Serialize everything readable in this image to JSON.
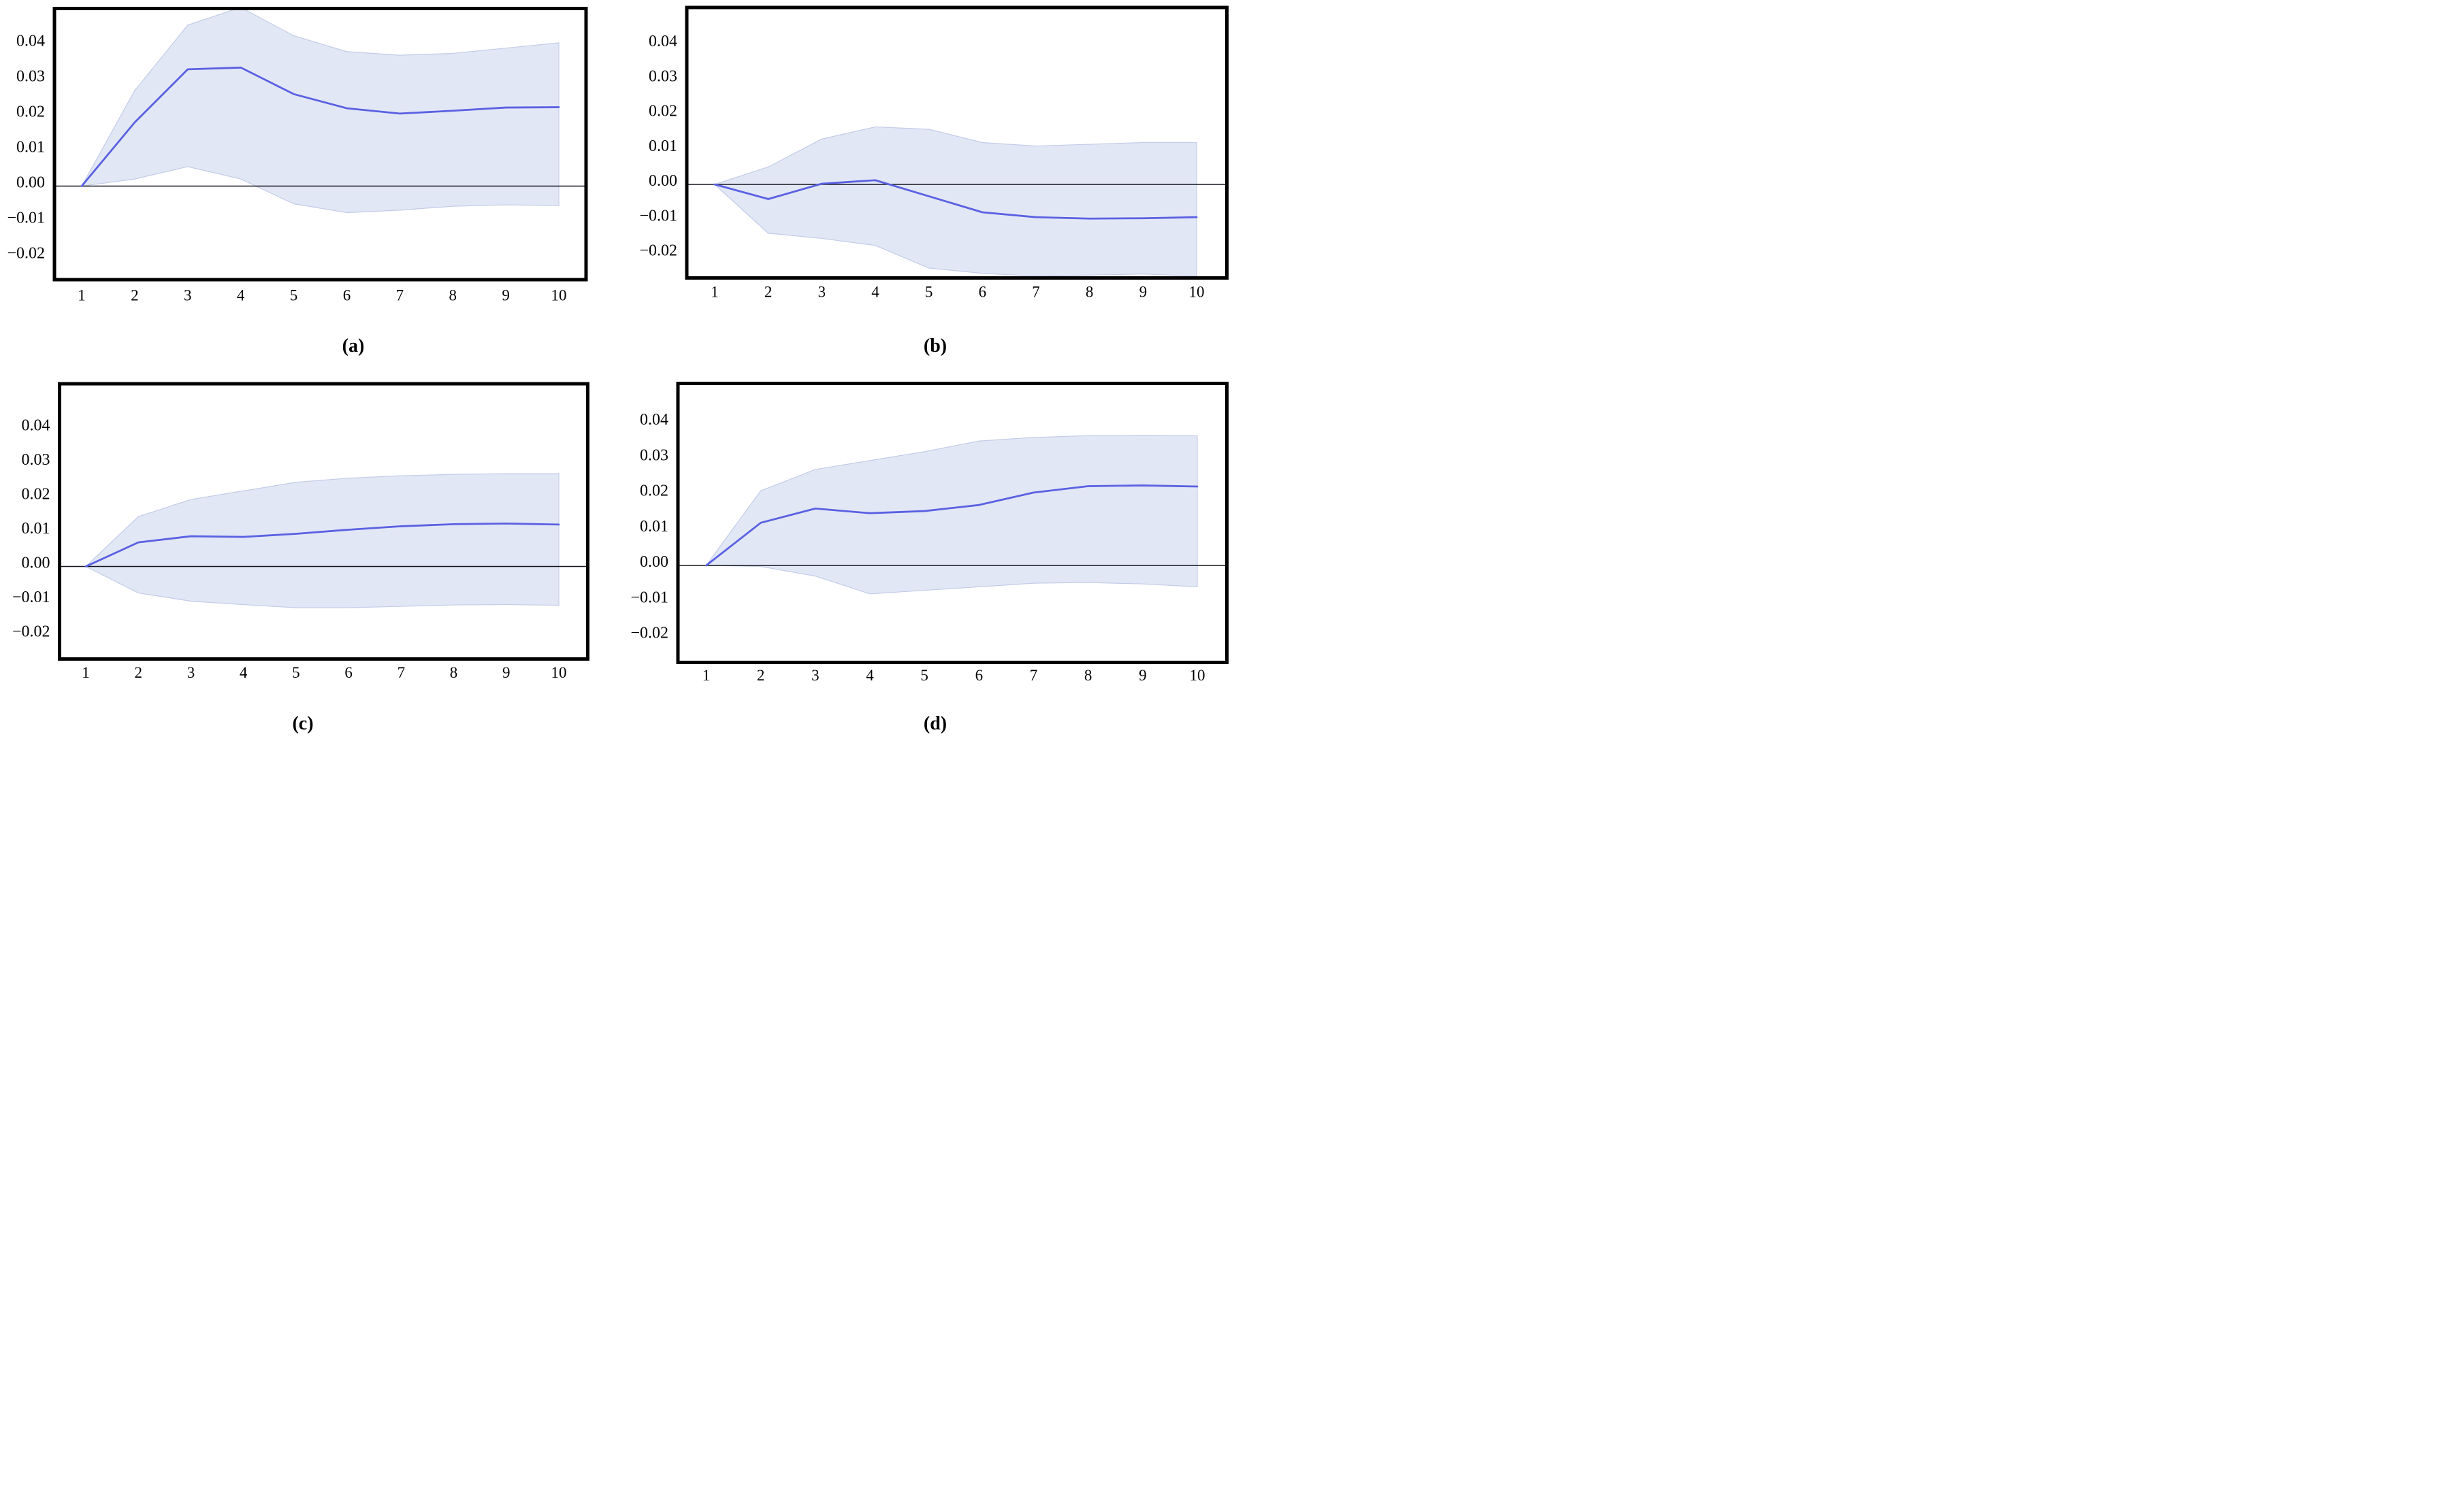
{
  "figure": {
    "description": "Four-panel impulse response figure with 95% confidence bands",
    "panel_labels": [
      "(a)",
      "(b)",
      "(c)",
      "(d)"
    ],
    "background": "#ffffff"
  },
  "colors": {
    "line": "#5a61e2",
    "band_fill": "#e2e7f5",
    "band_edge": "#c3cce7",
    "zero_line": "#15151f",
    "frame": "#000000",
    "text": "#000000"
  },
  "chart_data": [
    {
      "type": "line",
      "panel": "a",
      "caption": "(a)",
      "x": [
        1,
        2,
        3,
        4,
        5,
        6,
        7,
        8,
        9,
        10
      ],
      "x_tick_labels": [
        "1",
        "2",
        "3",
        "4",
        "5",
        "6",
        "7",
        "8",
        "9",
        "10"
      ],
      "y_ticks": [
        0.04,
        0.03,
        0.02,
        0.01,
        0.0,
        -0.01,
        -0.02
      ],
      "y_tick_labels": [
        "0.04",
        "0.03",
        "0.02",
        "0.01",
        "0.00",
        "−0.01",
        "−0.02"
      ],
      "ylim": [
        -0.027,
        0.05
      ],
      "grid": false,
      "legend": false,
      "zero_line": true,
      "series": [
        {
          "name": "impulse-response-mean",
          "values": [
            0.0,
            0.018,
            0.033,
            0.0335,
            0.026,
            0.022,
            0.0205,
            0.0213,
            0.0222,
            0.0223
          ]
        },
        {
          "name": "confidence-band-upper",
          "values": [
            0.0,
            0.027,
            0.0455,
            0.0505,
            0.0425,
            0.038,
            0.037,
            0.0375,
            0.039,
            0.0405
          ]
        },
        {
          "name": "confidence-band-lower",
          "values": [
            0.0,
            0.002,
            0.0055,
            0.002,
            -0.005,
            -0.0075,
            -0.0068,
            -0.0057,
            -0.0053,
            -0.0055
          ]
        }
      ]
    },
    {
      "type": "line",
      "panel": "b",
      "caption": "(b)",
      "x": [
        1,
        2,
        3,
        4,
        5,
        6,
        7,
        8,
        9,
        10
      ],
      "x_tick_labels": [
        "1",
        "2",
        "3",
        "4",
        "5",
        "6",
        "7",
        "8",
        "9",
        "10"
      ],
      "y_ticks": [
        0.04,
        0.03,
        0.02,
        0.01,
        0.0,
        -0.01,
        -0.02
      ],
      "y_tick_labels": [
        "0.04",
        "0.03",
        "0.02",
        "0.01",
        "0.00",
        "−0.01",
        "−0.02"
      ],
      "ylim": [
        -0.027,
        0.05
      ],
      "grid": false,
      "legend": false,
      "zero_line": true,
      "series": [
        {
          "name": "impulse-response-mean",
          "values": [
            0.0,
            -0.0042,
            0.0002,
            0.0012,
            -0.0034,
            -0.008,
            -0.0094,
            -0.0098,
            -0.0097,
            -0.0094
          ]
        },
        {
          "name": "confidence-band-upper",
          "values": [
            0.0,
            0.005,
            0.013,
            0.0165,
            0.0158,
            0.012,
            0.011,
            0.0115,
            0.012,
            0.012
          ]
        },
        {
          "name": "confidence-band-lower",
          "values": [
            0.0,
            -0.014,
            -0.0155,
            -0.0175,
            -0.024,
            -0.0255,
            -0.0263,
            -0.026,
            -0.0257,
            -0.0263
          ]
        }
      ]
    },
    {
      "type": "line",
      "panel": "c",
      "caption": "(c)",
      "x": [
        1,
        2,
        3,
        4,
        5,
        6,
        7,
        8,
        9,
        10
      ],
      "x_tick_labels": [
        "1",
        "2",
        "3",
        "4",
        "5",
        "6",
        "7",
        "8",
        "9",
        "10"
      ],
      "y_ticks": [
        0.04,
        0.03,
        0.02,
        0.01,
        0.0,
        -0.01,
        -0.02
      ],
      "y_tick_labels": [
        "0.04",
        "0.03",
        "0.02",
        "0.01",
        "0.00",
        "−0.01",
        "−0.02"
      ],
      "ylim": [
        -0.027,
        0.05
      ],
      "grid": false,
      "legend": false,
      "zero_line": true,
      "series": [
        {
          "name": "impulse-response-mean",
          "values": [
            0.0,
            0.007,
            0.0088,
            0.0086,
            0.0095,
            0.0107,
            0.0117,
            0.0123,
            0.0125,
            0.0122
          ]
        },
        {
          "name": "confidence-band-upper",
          "values": [
            0.0,
            0.0145,
            0.0195,
            0.022,
            0.0245,
            0.0257,
            0.0264,
            0.0268,
            0.027,
            0.027
          ]
        },
        {
          "name": "confidence-band-lower",
          "values": [
            0.0,
            -0.0077,
            -0.0101,
            -0.0111,
            -0.012,
            -0.012,
            -0.0116,
            -0.0112,
            -0.0111,
            -0.0113
          ]
        }
      ]
    },
    {
      "type": "line",
      "panel": "d",
      "caption": "(d)",
      "x": [
        1,
        2,
        3,
        4,
        5,
        6,
        7,
        8,
        9,
        10
      ],
      "x_tick_labels": [
        "1",
        "2",
        "3",
        "4",
        "5",
        "6",
        "7",
        "8",
        "9",
        "10"
      ],
      "y_ticks": [
        0.04,
        0.03,
        0.02,
        0.01,
        0.0,
        -0.01,
        -0.02
      ],
      "y_tick_labels": [
        "0.04",
        "0.03",
        "0.02",
        "0.01",
        "0.00",
        "−0.01",
        "−0.02"
      ],
      "ylim": [
        -0.028,
        0.05
      ],
      "grid": false,
      "legend": false,
      "zero_line": true,
      "series": [
        {
          "name": "impulse-response-mean",
          "values": [
            0.0,
            0.012,
            0.016,
            0.0147,
            0.0153,
            0.017,
            0.0205,
            0.0223,
            0.0225,
            0.0222
          ]
        },
        {
          "name": "confidence-band-upper",
          "values": [
            0.0,
            0.021,
            0.027,
            0.0295,
            0.032,
            0.035,
            0.036,
            0.0365,
            0.0366,
            0.0365
          ]
        },
        {
          "name": "confidence-band-lower",
          "values": [
            0.0,
            -0.0003,
            -0.003,
            -0.008,
            -0.007,
            -0.006,
            -0.005,
            -0.0048,
            -0.0052,
            -0.006
          ]
        }
      ]
    }
  ]
}
